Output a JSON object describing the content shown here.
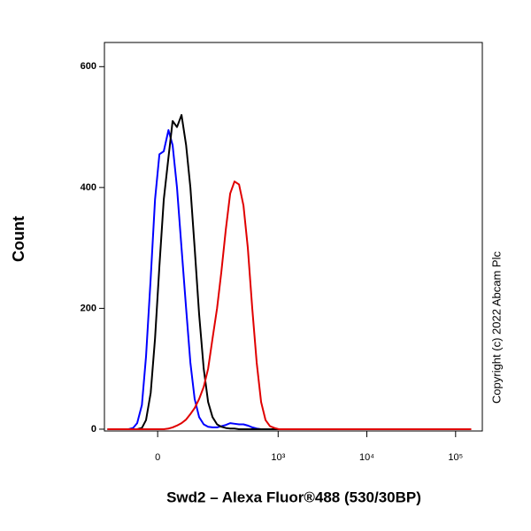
{
  "chart_data": {
    "type": "line",
    "x_label": "Swd2 – Alexa Fluor®488 (530/30BP)",
    "y_label": "Count",
    "annotation": "Copyright (c) 2022 Abcam Plc",
    "xscale": "arcsinh",
    "xscale_cofactor": 88,
    "xlim": [
      -164,
      200000
    ],
    "xticks": [
      0,
      {
        "value": 1000,
        "label": "10³"
      },
      {
        "value": 10000,
        "label": "10⁴"
      },
      {
        "value": 100000,
        "label": "10⁵"
      }
    ],
    "ylim": [
      -3,
      640
    ],
    "yticks": [
      0,
      200,
      400,
      600
    ],
    "x": [
      -150,
      -87,
      -73,
      -60,
      -49,
      -37,
      -27,
      -16,
      -6,
      4,
      14,
      25,
      35,
      46,
      58,
      71,
      84,
      98,
      114,
      132,
      151,
      172,
      196,
      221,
      250,
      282,
      317,
      358,
      403,
      452,
      508,
      571,
      641,
      720,
      808,
      907,
      1018,
      1142,
      150000
    ],
    "series": [
      {
        "color": "#0000ff",
        "values": [
          0,
          0,
          0,
          2,
          10,
          40,
          120,
          250,
          380,
          455,
          460,
          495,
          470,
          400,
          300,
          200,
          110,
          50,
          20,
          8,
          4,
          3,
          3,
          5,
          7,
          10,
          9,
          8,
          8,
          6,
          3,
          1,
          0,
          0,
          0,
          0,
          0,
          0,
          0
        ]
      },
      {
        "color": "#000000",
        "values": [
          0,
          0,
          0,
          0,
          0,
          2,
          15,
          60,
          150,
          270,
          380,
          450,
          510,
          500,
          520,
          470,
          400,
          300,
          190,
          100,
          45,
          20,
          8,
          4,
          2,
          1,
          1,
          0,
          0,
          0,
          0,
          0,
          0,
          0,
          0,
          0,
          0,
          0,
          0
        ]
      },
      {
        "color": "#e00000",
        "values": [
          0,
          0,
          0,
          0,
          0,
          0,
          0,
          0,
          0,
          0,
          0,
          1,
          3,
          6,
          10,
          16,
          25,
          35,
          50,
          70,
          100,
          150,
          200,
          260,
          330,
          390,
          410,
          405,
          370,
          300,
          200,
          110,
          45,
          15,
          5,
          2,
          0,
          0,
          0
        ]
      }
    ]
  }
}
